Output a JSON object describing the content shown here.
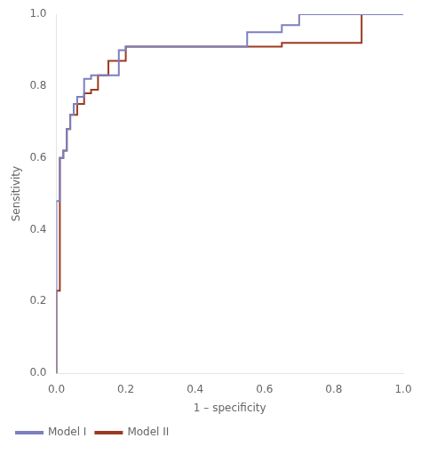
{
  "chart_data": {
    "type": "line",
    "xlabel": "1 – specificity",
    "ylabel": "Sensitivity",
    "series": [
      {
        "name": "Model I",
        "color": "#7b7fbe",
        "x": [
          0.0,
          0.0,
          0.0,
          0.01,
          0.01,
          0.02,
          0.02,
          0.03,
          0.03,
          0.04,
          0.04,
          0.05,
          0.05,
          0.06,
          0.06,
          0.08,
          0.08,
          0.1,
          0.1,
          0.12,
          0.12,
          0.15,
          0.15,
          0.18,
          0.18,
          0.2,
          0.2,
          0.35,
          0.35,
          0.55,
          0.55,
          0.65,
          0.65,
          0.7,
          0.7,
          1.0
        ],
        "values": [
          0.0,
          0.25,
          0.48,
          0.48,
          0.6,
          0.6,
          0.62,
          0.62,
          0.68,
          0.68,
          0.72,
          0.72,
          0.75,
          0.75,
          0.77,
          0.77,
          0.82,
          0.82,
          0.83,
          0.83,
          0.83,
          0.83,
          0.83,
          0.83,
          0.9,
          0.9,
          0.91,
          0.91,
          0.91,
          0.91,
          0.95,
          0.95,
          0.97,
          0.97,
          1.0,
          1.0
        ]
      },
      {
        "name": "Model II",
        "color": "#9b3a20",
        "x": [
          0.0,
          0.0,
          0.01,
          0.01,
          0.02,
          0.02,
          0.03,
          0.03,
          0.04,
          0.04,
          0.06,
          0.06,
          0.08,
          0.08,
          0.1,
          0.1,
          0.12,
          0.12,
          0.15,
          0.15,
          0.2,
          0.2,
          0.35,
          0.35,
          0.55,
          0.55,
          0.65,
          0.65,
          0.8,
          0.8,
          0.88,
          0.88,
          1.0
        ],
        "values": [
          0.0,
          0.23,
          0.23,
          0.6,
          0.6,
          0.62,
          0.62,
          0.68,
          0.68,
          0.72,
          0.72,
          0.75,
          0.75,
          0.78,
          0.78,
          0.79,
          0.79,
          0.83,
          0.83,
          0.87,
          0.87,
          0.91,
          0.91,
          0.91,
          0.91,
          0.91,
          0.91,
          0.92,
          0.92,
          0.92,
          0.92,
          1.0,
          1.0
        ]
      }
    ],
    "xlim": [
      0.0,
      1.0
    ],
    "ylim": [
      0.0,
      1.0
    ],
    "xticks": [
      {
        "value": 0.0,
        "label": "0.0"
      },
      0.2,
      0.4,
      0.6,
      0.8,
      {
        "value": 1.0,
        "label": "1.0"
      }
    ],
    "yticks": [
      {
        "value": 0.0,
        "label": "0.0"
      },
      0.2,
      0.4,
      0.6,
      0.8,
      {
        "value": 1.0,
        "label": "1.0"
      }
    ],
    "grid": false,
    "legend": "bottom"
  }
}
